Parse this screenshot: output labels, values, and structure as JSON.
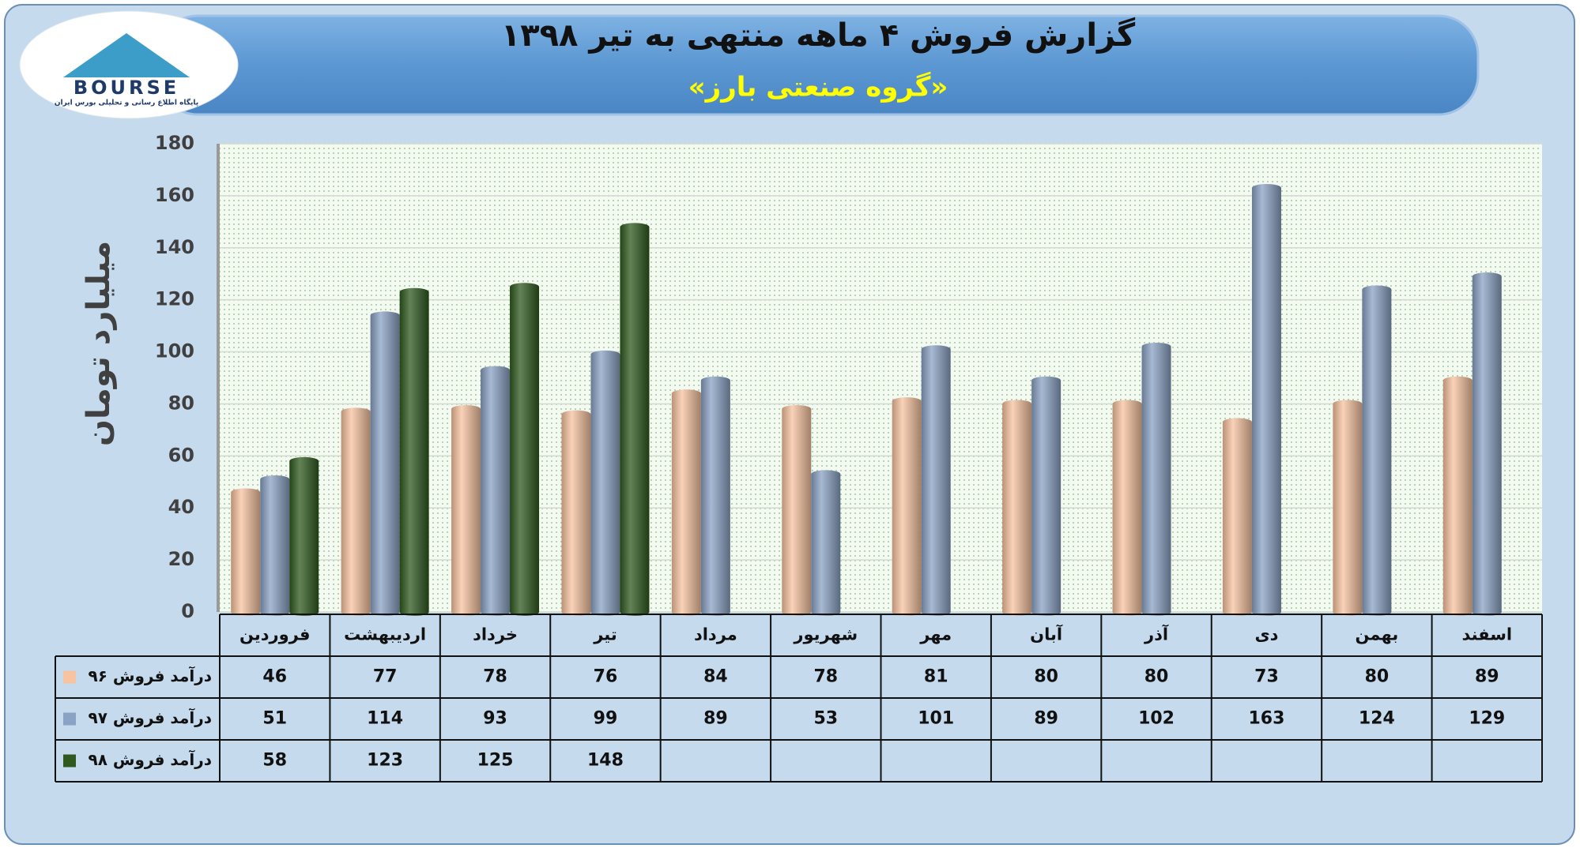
{
  "logo": {
    "name": "BOURSE",
    "tagline": "پایگاه اطلاع رسانی و تحلیلی بورس ایران"
  },
  "chart_data": {
    "type": "bar",
    "title": "گزارش فروش ۴ ماهه منتهی به تیر ۱۳۹۸",
    "subtitle": "«گروه صنعتی بارز»",
    "y_label": "میلیارد تومان",
    "categories": [
      "فروردین",
      "اردیبهشت",
      "خرداد",
      "تیر",
      "مرداد",
      "شهریور",
      "مهر",
      "آبان",
      "آذر",
      "دی",
      "بهمن",
      "اسفند"
    ],
    "series": [
      {
        "name": "درآمد فروش ۹۶",
        "color": "#f7c3a0",
        "values": [
          46,
          77,
          78,
          76,
          84,
          78,
          81,
          80,
          80,
          73,
          80,
          89
        ]
      },
      {
        "name": "درآمد فروش ۹۷",
        "color": "#8aa2c4",
        "values": [
          51,
          114,
          93,
          99,
          89,
          53,
          101,
          89,
          102,
          163,
          124,
          129
        ]
      },
      {
        "name": "درآمد فروش ۹۸",
        "color": "#2f5a1f",
        "values": [
          58,
          123,
          125,
          148,
          null,
          null,
          null,
          null,
          null,
          null,
          null,
          null
        ]
      }
    ],
    "ylim": [
      0,
      180
    ],
    "yticks": [
      0,
      20,
      40,
      60,
      80,
      100,
      120,
      140,
      160,
      180
    ],
    "grid": true
  }
}
